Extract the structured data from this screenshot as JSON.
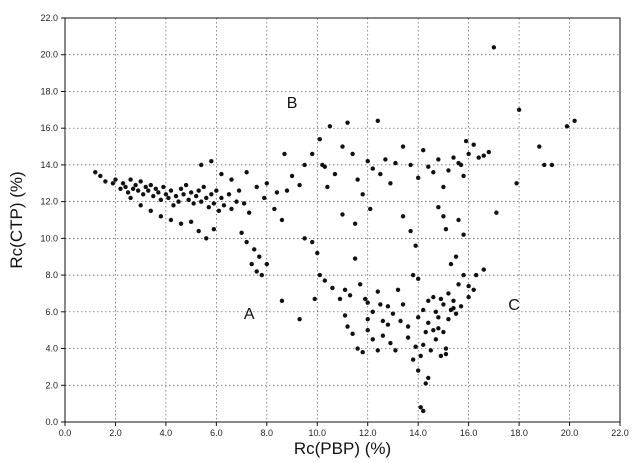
{
  "chart_data": {
    "type": "scatter",
    "title": "",
    "xlabel": "Rc(PBP) (%)",
    "ylabel": "Rc(CTP) (%)",
    "xlim": [
      0,
      22
    ],
    "ylim": [
      0,
      22
    ],
    "xticks": [
      "0.0",
      "2.0",
      "4.0",
      "6.0",
      "8.0",
      "10.0",
      "12.0",
      "14.0",
      "16.0",
      "18.0",
      "20.0",
      "22.0"
    ],
    "yticks": [
      "0.0",
      "2.0",
      "4.0",
      "6.0",
      "8.0",
      "10.0",
      "12.0",
      "14.0",
      "16.0",
      "18.0",
      "20.0",
      "22.0"
    ],
    "grid": true,
    "marker_color": "#111111",
    "annotations": [
      {
        "text": "A",
        "x": 7.3,
        "y": 5.6
      },
      {
        "text": "B",
        "x": 9.0,
        "y": 17.1
      },
      {
        "text": "C",
        "x": 17.8,
        "y": 6.1
      }
    ],
    "points": [
      [
        1.2,
        13.6
      ],
      [
        1.4,
        13.4
      ],
      [
        1.6,
        13.1
      ],
      [
        1.9,
        13.0
      ],
      [
        2.0,
        13.2
      ],
      [
        2.3,
        13.0
      ],
      [
        2.4,
        12.8
      ],
      [
        2.5,
        12.5
      ],
      [
        2.6,
        13.2
      ],
      [
        2.7,
        12.7
      ],
      [
        2.8,
        12.9
      ],
      [
        2.9,
        12.6
      ],
      [
        3.0,
        13.1
      ],
      [
        3.1,
        12.4
      ],
      [
        3.2,
        12.8
      ],
      [
        3.3,
        12.6
      ],
      [
        3.4,
        12.9
      ],
      [
        3.5,
        12.3
      ],
      [
        3.6,
        12.7
      ],
      [
        3.7,
        12.5
      ],
      [
        3.8,
        12.1
      ],
      [
        3.9,
        12.8
      ],
      [
        4.0,
        12.4
      ],
      [
        4.1,
        12.2
      ],
      [
        4.2,
        12.6
      ],
      [
        4.3,
        11.8
      ],
      [
        4.4,
        12.3
      ],
      [
        4.5,
        12.0
      ],
      [
        4.6,
        12.7
      ],
      [
        4.7,
        12.4
      ],
      [
        4.8,
        12.9
      ],
      [
        4.9,
        12.1
      ],
      [
        5.0,
        12.5
      ],
      [
        5.1,
        11.9
      ],
      [
        5.2,
        12.3
      ],
      [
        5.3,
        12.6
      ],
      [
        5.4,
        12.0
      ],
      [
        5.5,
        12.8
      ],
      [
        5.6,
        12.2
      ],
      [
        5.7,
        11.7
      ],
      [
        5.8,
        12.4
      ],
      [
        5.9,
        11.9
      ],
      [
        6.0,
        12.6
      ],
      [
        6.1,
        11.5
      ],
      [
        6.2,
        12.2
      ],
      [
        6.3,
        11.8
      ],
      [
        6.5,
        12.4
      ],
      [
        6.6,
        11.6
      ],
      [
        6.8,
        12.0
      ],
      [
        2.2,
        12.7
      ],
      [
        2.6,
        12.2
      ],
      [
        3.0,
        11.8
      ],
      [
        3.4,
        11.5
      ],
      [
        3.8,
        11.2
      ],
      [
        4.2,
        11.0
      ],
      [
        4.6,
        10.8
      ],
      [
        5.0,
        10.9
      ],
      [
        5.3,
        10.4
      ],
      [
        5.6,
        10.0
      ],
      [
        5.9,
        10.5
      ],
      [
        5.4,
        14.0
      ],
      [
        5.8,
        14.2
      ],
      [
        6.2,
        13.5
      ],
      [
        6.6,
        13.2
      ],
      [
        6.9,
        12.6
      ],
      [
        7.1,
        11.9
      ],
      [
        7.3,
        11.4
      ],
      [
        7.0,
        10.3
      ],
      [
        7.2,
        9.8
      ],
      [
        7.5,
        9.4
      ],
      [
        7.7,
        9.0
      ],
      [
        7.4,
        8.6
      ],
      [
        7.6,
        8.2
      ],
      [
        7.8,
        8.0
      ],
      [
        8.0,
        8.6
      ],
      [
        7.2,
        13.6
      ],
      [
        7.6,
        12.8
      ],
      [
        7.9,
        12.2
      ],
      [
        8.3,
        11.6
      ],
      [
        8.6,
        11.0
      ],
      [
        8.0,
        13.0
      ],
      [
        8.4,
        12.5
      ],
      [
        8.8,
        12.6
      ],
      [
        9.0,
        13.4
      ],
      [
        9.3,
        12.9
      ],
      [
        8.7,
        14.6
      ],
      [
        9.5,
        14.0
      ],
      [
        9.8,
        14.6
      ],
      [
        10.1,
        15.4
      ],
      [
        10.3,
        13.9
      ],
      [
        10.5,
        16.1
      ],
      [
        10.2,
        14.0
      ],
      [
        10.4,
        12.8
      ],
      [
        10.7,
        13.5
      ],
      [
        11.0,
        15.0
      ],
      [
        11.2,
        16.3
      ],
      [
        11.4,
        14.6
      ],
      [
        11.6,
        13.2
      ],
      [
        11.8,
        12.4
      ],
      [
        12.0,
        14.2
      ],
      [
        12.2,
        13.8
      ],
      [
        12.4,
        16.4
      ],
      [
        12.5,
        13.5
      ],
      [
        12.7,
        14.3
      ],
      [
        12.9,
        13.0
      ],
      [
        13.1,
        14.1
      ],
      [
        13.4,
        15.0
      ],
      [
        13.7,
        14.0
      ],
      [
        14.0,
        13.3
      ],
      [
        14.2,
        14.8
      ],
      [
        14.4,
        13.9
      ],
      [
        14.6,
        13.6
      ],
      [
        14.8,
        14.3
      ],
      [
        15.0,
        12.8
      ],
      [
        15.2,
        13.7
      ],
      [
        15.4,
        14.4
      ],
      [
        15.6,
        14.1
      ],
      [
        15.8,
        13.4
      ],
      [
        16.0,
        14.6
      ],
      [
        16.2,
        15.1
      ],
      [
        16.4,
        14.4
      ],
      [
        16.6,
        14.5
      ],
      [
        16.8,
        14.7
      ],
      [
        15.9,
        15.3
      ],
      [
        15.7,
        14.0
      ],
      [
        17.0,
        20.4
      ],
      [
        17.1,
        11.4
      ],
      [
        17.9,
        13.0
      ],
      [
        18.0,
        17.0
      ],
      [
        18.8,
        15.0
      ],
      [
        19.0,
        14.0
      ],
      [
        19.3,
        14.0
      ],
      [
        19.9,
        16.1
      ],
      [
        20.2,
        16.4
      ],
      [
        11.0,
        11.3
      ],
      [
        11.5,
        10.8
      ],
      [
        12.1,
        11.6
      ],
      [
        13.4,
        11.2
      ],
      [
        13.7,
        10.4
      ],
      [
        13.9,
        9.6
      ],
      [
        9.5,
        10.0
      ],
      [
        9.8,
        9.8
      ],
      [
        10.1,
        8.0
      ],
      [
        10.3,
        7.7
      ],
      [
        10.6,
        7.3
      ],
      [
        10.9,
        6.7
      ],
      [
        11.1,
        7.2
      ],
      [
        11.3,
        6.9
      ],
      [
        11.5,
        8.9
      ],
      [
        11.7,
        7.5
      ],
      [
        12.0,
        6.5
      ],
      [
        12.2,
        6.0
      ],
      [
        12.4,
        7.1
      ],
      [
        12.6,
        5.5
      ],
      [
        12.8,
        6.3
      ],
      [
        13.0,
        5.9
      ],
      [
        13.2,
        7.2
      ],
      [
        13.4,
        6.4
      ],
      [
        13.6,
        5.2
      ],
      [
        13.8,
        8.0
      ],
      [
        14.0,
        7.8
      ],
      [
        14.2,
        6.1
      ],
      [
        14.4,
        5.4
      ],
      [
        14.6,
        6.8
      ],
      [
        14.8,
        5.7
      ],
      [
        15.0,
        6.4
      ],
      [
        15.2,
        7.0
      ],
      [
        15.4,
        6.2
      ],
      [
        15.6,
        7.5
      ],
      [
        15.8,
        8.0
      ],
      [
        16.0,
        7.4
      ],
      [
        16.3,
        8.0
      ],
      [
        16.6,
        8.3
      ],
      [
        15.5,
        9.0
      ],
      [
        15.3,
        8.6
      ],
      [
        15.1,
        10.5
      ],
      [
        15.0,
        11.2
      ],
      [
        14.8,
        11.7
      ],
      [
        15.6,
        11.0
      ],
      [
        15.8,
        10.2
      ],
      [
        12.0,
        5.0
      ],
      [
        12.2,
        4.5
      ],
      [
        12.4,
        3.9
      ],
      [
        12.6,
        4.7
      ],
      [
        12.8,
        5.3
      ],
      [
        11.6,
        4.0
      ],
      [
        11.8,
        3.8
      ],
      [
        12.0,
        5.6
      ],
      [
        11.4,
        4.8
      ],
      [
        11.2,
        5.2
      ],
      [
        13.8,
        3.4
      ],
      [
        14.0,
        2.8
      ],
      [
        14.1,
        3.6
      ],
      [
        14.2,
        4.2
      ],
      [
        14.3,
        2.1
      ],
      [
        14.1,
        0.8
      ],
      [
        14.2,
        0.6
      ],
      [
        14.5,
        3.9
      ],
      [
        14.7,
        4.5
      ],
      [
        14.9,
        3.6
      ],
      [
        15.0,
        4.9
      ],
      [
        15.1,
        3.7
      ],
      [
        14.6,
        5.0
      ],
      [
        14.4,
        6.6
      ],
      [
        14.7,
        6.0
      ],
      [
        15.2,
        5.6
      ],
      [
        15.3,
        6.1
      ],
      [
        15.5,
        5.9
      ],
      [
        15.7,
        6.3
      ],
      [
        14.9,
        6.7
      ],
      [
        8.6,
        6.6
      ],
      [
        9.3,
        5.6
      ],
      [
        9.9,
        6.7
      ],
      [
        10.0,
        9.2
      ],
      [
        11.1,
        5.8
      ],
      [
        12.9,
        4.3
      ],
      [
        13.3,
        5.5
      ],
      [
        13.6,
        4.6
      ],
      [
        14.3,
        4.9
      ],
      [
        14.8,
        5.1
      ],
      [
        13.1,
        3.9
      ],
      [
        13.9,
        4.1
      ],
      [
        14.0,
        5.7
      ],
      [
        15.4,
        6.6
      ],
      [
        16.0,
        6.8
      ],
      [
        16.2,
        7.2
      ],
      [
        14.4,
        2.4
      ],
      [
        15.1,
        4.0
      ],
      [
        12.5,
        6.4
      ],
      [
        11.9,
        6.7
      ]
    ]
  }
}
